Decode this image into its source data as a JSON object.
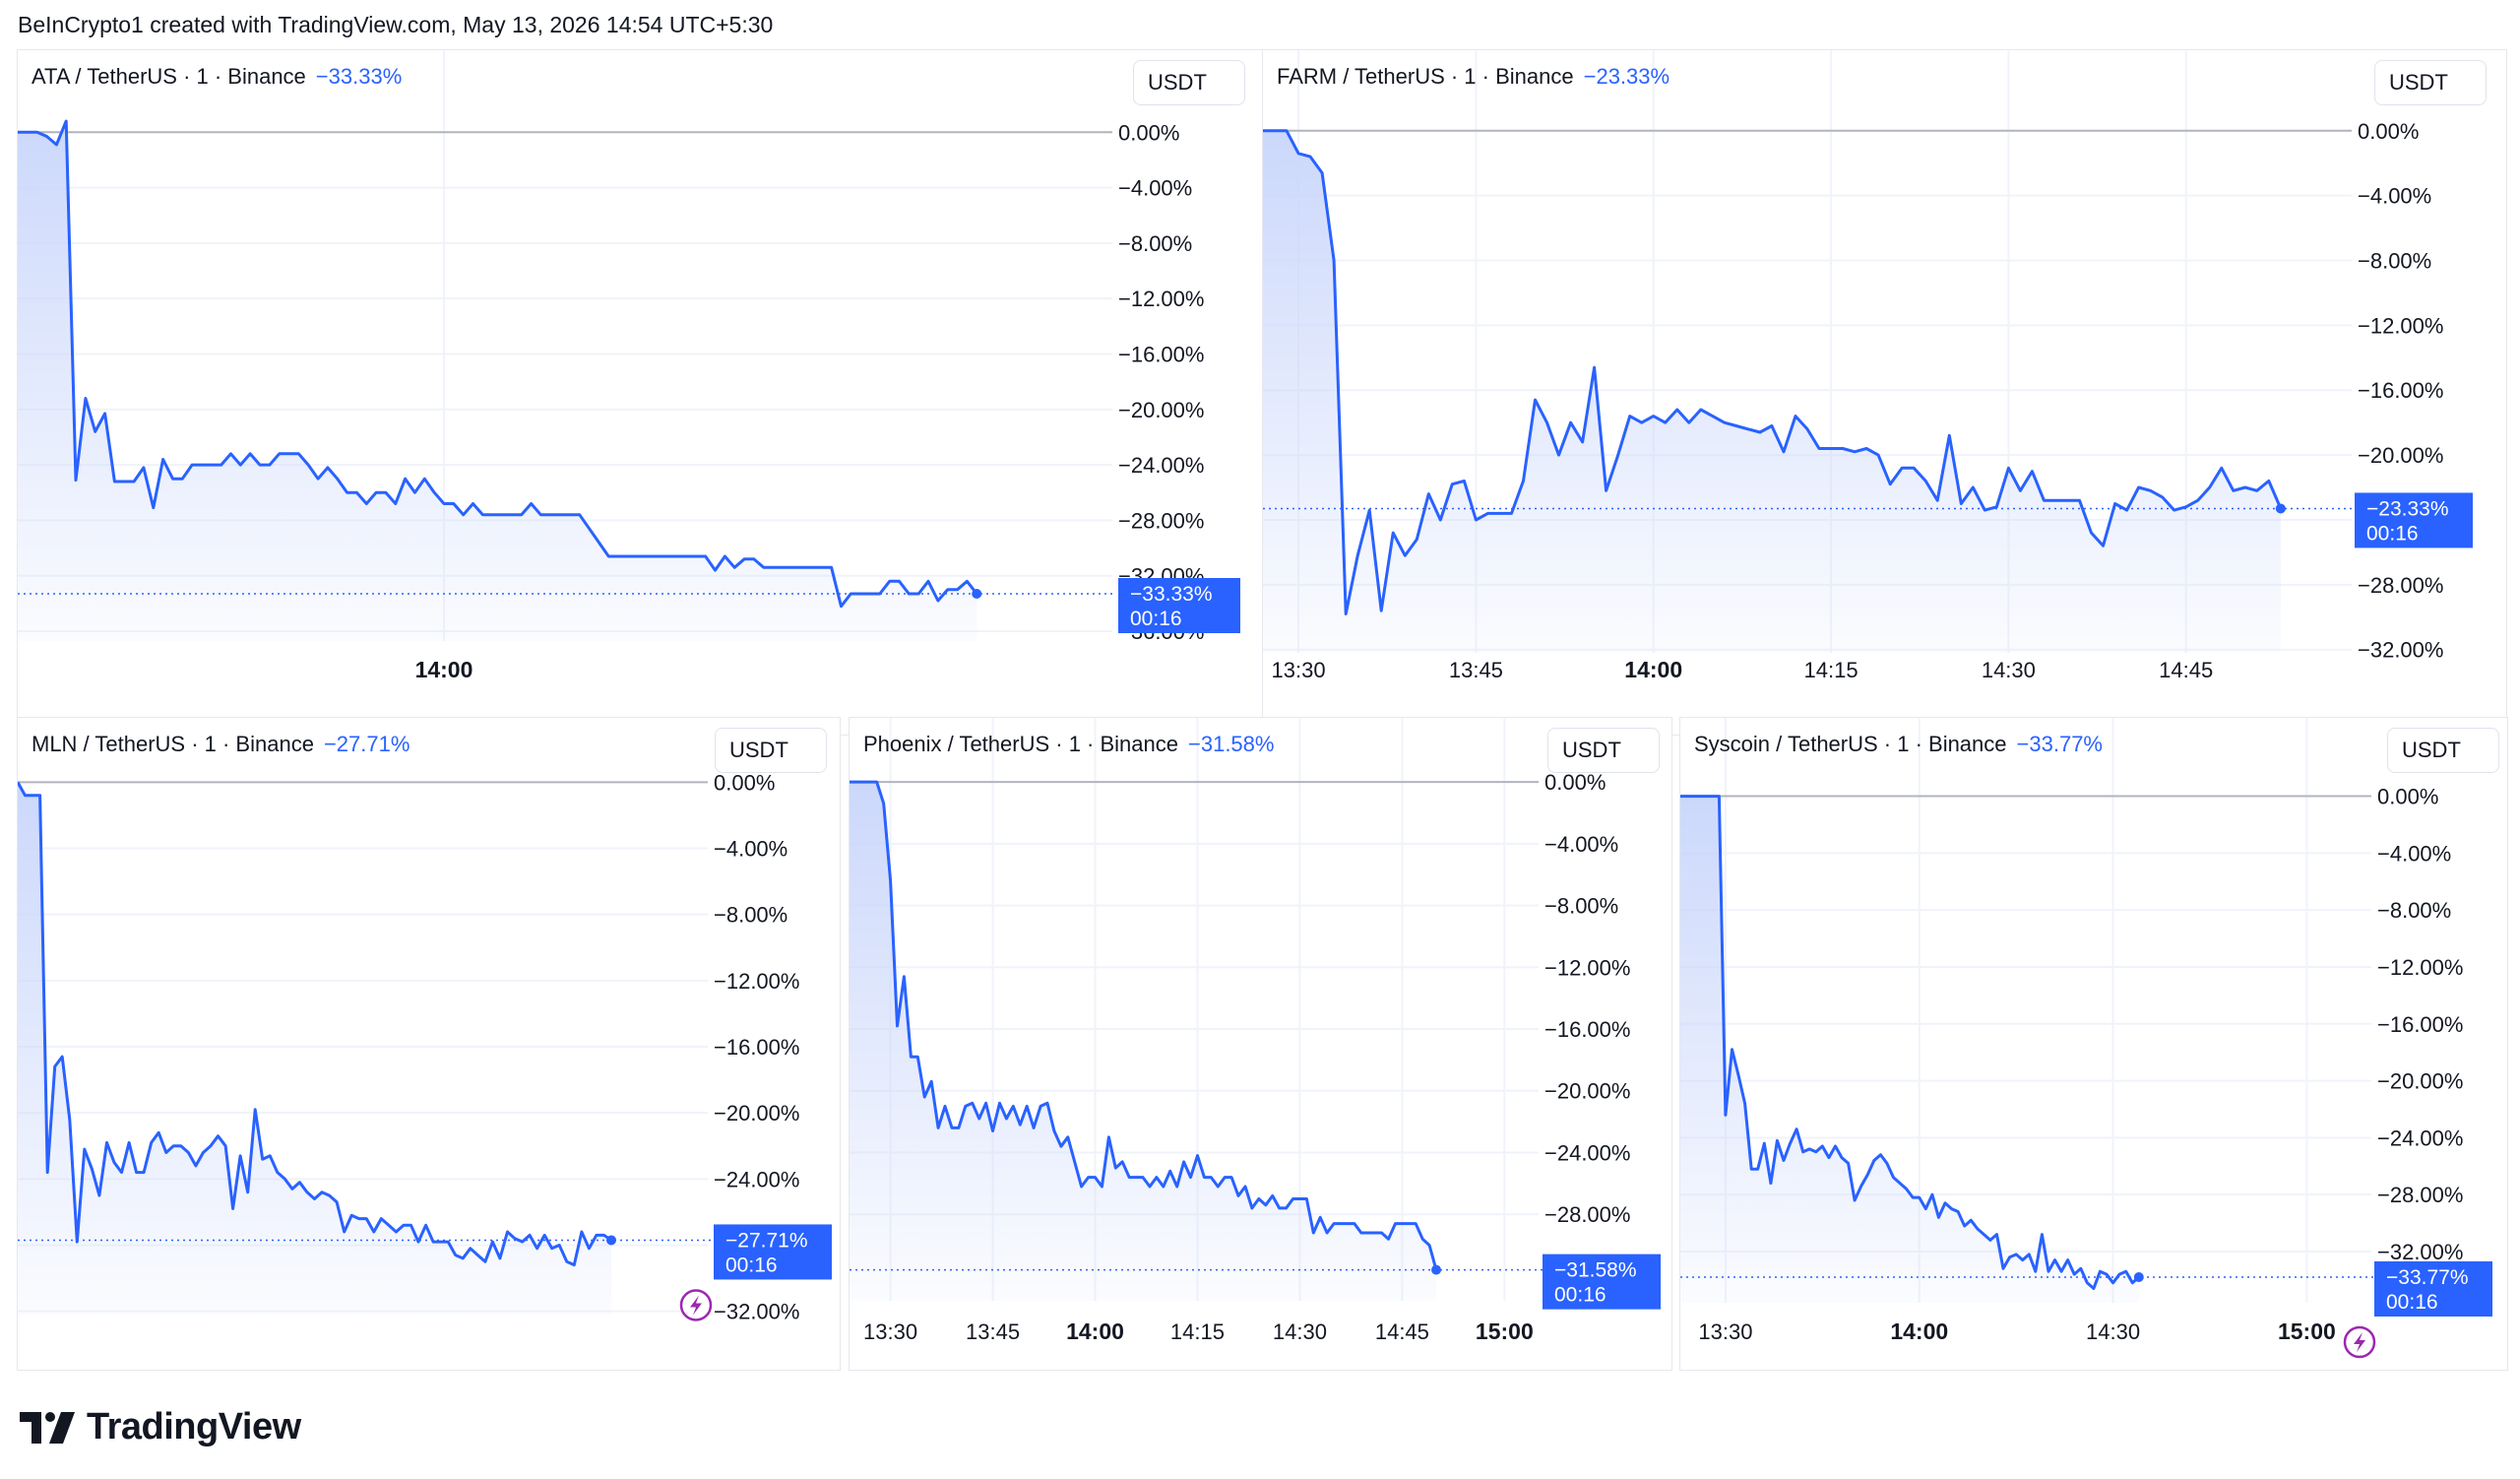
{
  "header": {
    "credit": "BeInCrypto1 created with TradingView.com, May 13, 2026 14:54 UTC+5:30"
  },
  "brand": {
    "name": "TradingView",
    "logo_icon": "tradingview-logo-icon"
  },
  "colors": {
    "line": "#2962ff",
    "fill_top": "#c9d6fb",
    "grid": "#f0f3fa",
    "label_bg": "#2962ff",
    "baseline": "#b2b5be",
    "bolt": "#9c27b0"
  },
  "chart_data": [
    {
      "type": "area",
      "title": "ATA / TetherUS · 1 · Binance",
      "change": "−33.33%",
      "currency": "USDT",
      "last_label": "−33.33%",
      "countdown": "00:16",
      "ylim": [
        -36,
        0.8
      ],
      "yticks": [
        "0.00%",
        "−4.00%",
        "−8.00%",
        "−12.00%",
        "−16.00%",
        "−20.00%",
        "−24.00%",
        "−28.00%",
        "−32.00%",
        "−36.00%"
      ],
      "ytick_values": [
        0,
        -4,
        -8,
        -12,
        -16,
        -20,
        -24,
        -28,
        -32,
        -36
      ],
      "xlim": [
        0,
        113
      ],
      "xticks": [
        {
          "label": "14:00",
          "x": 44,
          "bold": true
        }
      ],
      "bolt": false,
      "values": [
        0,
        0,
        0,
        -0.3,
        -0.9,
        0.8,
        -25.1,
        -19.2,
        -21.6,
        -20.3,
        -25.2,
        -25.2,
        -25.2,
        -24.2,
        -27.1,
        -23.6,
        -25.0,
        -25.0,
        -24.0,
        -24.0,
        -24.0,
        -24.0,
        -23.2,
        -24.0,
        -23.2,
        -24.0,
        -24.0,
        -23.2,
        -23.2,
        -23.2,
        -24.0,
        -25.0,
        -24.2,
        -25.0,
        -26.0,
        -26.0,
        -26.8,
        -26.0,
        -26.0,
        -26.8,
        -25.0,
        -26.0,
        -25.0,
        -26.0,
        -26.8,
        -26.8,
        -27.6,
        -26.8,
        -27.6,
        -27.6,
        -27.6,
        -27.6,
        -27.6,
        -26.8,
        -27.6,
        -27.6,
        -27.6,
        -27.6,
        -27.6,
        -28.6,
        -29.6,
        -30.6,
        -30.6,
        -30.6,
        -30.6,
        -30.6,
        -30.6,
        -30.6,
        -30.6,
        -30.6,
        -30.6,
        -30.6,
        -31.6,
        -30.6,
        -31.4,
        -30.8,
        -30.8,
        -31.4,
        -31.4,
        -31.4,
        -31.4,
        -31.4,
        -31.4,
        -31.4,
        -31.4,
        -34.2,
        -33.3,
        -33.3,
        -33.3,
        -33.3,
        -32.4,
        -32.4,
        -33.3,
        -33.3,
        -32.4,
        -33.8,
        -33.0,
        -33.0,
        -32.4,
        -33.3
      ]
    },
    {
      "type": "area",
      "title": "FARM / TetherUS · 1 · Binance",
      "change": "−23.33%",
      "currency": "USDT",
      "last_label": "−23.33%",
      "countdown": "00:16",
      "ylim": [
        -32.2,
        1.2
      ],
      "yticks": [
        "0.00%",
        "−4.00%",
        "−8.00%",
        "−12.00%",
        "−16.00%",
        "−20.00%",
        "−24.00%",
        "−28.00%",
        "−32.00%"
      ],
      "ytick_values": [
        0,
        -4,
        -8,
        -12,
        -16,
        -20,
        -24,
        -28,
        -32
      ],
      "xlim": [
        0,
        92
      ],
      "xticks": [
        {
          "label": "13:30",
          "x": 3,
          "bold": false
        },
        {
          "label": "13:45",
          "x": 18,
          "bold": false
        },
        {
          "label": "14:00",
          "x": 33,
          "bold": true
        },
        {
          "label": "14:15",
          "x": 48,
          "bold": false
        },
        {
          "label": "14:30",
          "x": 63,
          "bold": false
        },
        {
          "label": "14:45",
          "x": 78,
          "bold": false
        }
      ],
      "bolt": false,
      "values": [
        0,
        0,
        0,
        -1.4,
        -1.6,
        -2.6,
        -8.0,
        -29.8,
        -26.2,
        -23.4,
        -29.6,
        -24.8,
        -26.2,
        -25.2,
        -22.4,
        -24.0,
        -21.8,
        -21.6,
        -24.0,
        -23.6,
        -23.6,
        -23.6,
        -21.6,
        -16.6,
        -18.0,
        -20.0,
        -18.0,
        -19.2,
        -14.6,
        -22.2,
        -20.0,
        -17.6,
        -18.0,
        -17.6,
        -18.0,
        -17.2,
        -18.0,
        -17.2,
        -17.6,
        -18.0,
        -18.2,
        -18.4,
        -18.6,
        -18.2,
        -19.8,
        -17.6,
        -18.4,
        -19.6,
        -19.6,
        -19.6,
        -19.8,
        -19.6,
        -20.0,
        -21.8,
        -20.8,
        -20.8,
        -21.6,
        -22.8,
        -18.8,
        -23.0,
        -22.0,
        -23.4,
        -23.2,
        -20.8,
        -22.2,
        -21.0,
        -22.8,
        -22.8,
        -22.8,
        -22.8,
        -24.8,
        -25.6,
        -23.0,
        -23.4,
        -22.0,
        -22.2,
        -22.6,
        -23.4,
        -23.2,
        -22.8,
        -22.0,
        -20.8,
        -22.2,
        -22.0,
        -22.2,
        -21.6,
        -23.3
      ]
    },
    {
      "type": "area",
      "title": "MLN / TetherUS · 1 · Binance",
      "change": "−27.71%",
      "currency": "USDT",
      "last_label": "−27.71%",
      "countdown": "00:16",
      "ylim": [
        -32.2,
        0.2
      ],
      "yticks": [
        "0.00%",
        "−4.00%",
        "−8.00%",
        "−12.00%",
        "−16.00%",
        "−20.00%",
        "−24.00%",
        "−28.00%",
        "−32.00%"
      ],
      "ytick_values": [
        0,
        -4,
        -8,
        -12,
        -16,
        -20,
        -24,
        -28,
        -32
      ],
      "xlim": [
        0,
        93
      ],
      "xticks": [],
      "bolt": true,
      "values": [
        0,
        -0.8,
        -0.8,
        -0.8,
        -23.6,
        -17.2,
        -16.6,
        -20.4,
        -27.8,
        -22.2,
        -23.4,
        -25.0,
        -21.8,
        -23.0,
        -23.6,
        -21.8,
        -23.6,
        -23.6,
        -21.8,
        -21.2,
        -22.4,
        -22.0,
        -22.0,
        -22.4,
        -23.2,
        -22.4,
        -22.0,
        -21.4,
        -22.0,
        -25.8,
        -22.6,
        -24.8,
        -19.8,
        -22.8,
        -22.6,
        -23.6,
        -24.0,
        -24.6,
        -24.2,
        -24.8,
        -25.2,
        -24.8,
        -25.0,
        -25.4,
        -27.2,
        -26.2,
        -26.4,
        -26.4,
        -27.2,
        -26.4,
        -26.8,
        -27.2,
        -26.8,
        -26.8,
        -27.8,
        -26.8,
        -27.8,
        -27.8,
        -27.8,
        -28.6,
        -28.8,
        -28.2,
        -28.6,
        -29.0,
        -27.8,
        -28.8,
        -27.2,
        -27.6,
        -27.8,
        -27.4,
        -28.2,
        -27.4,
        -28.2,
        -28.0,
        -29.0,
        -29.2,
        -27.2,
        -28.2,
        -27.4,
        -27.4,
        -27.7
      ]
    },
    {
      "type": "area",
      "title": "Phoenix / TetherUS · 1 · Binance",
      "change": "−31.58%",
      "currency": "USDT",
      "last_label": "−31.58%",
      "countdown": "00:16",
      "ylim": [
        -33.6,
        0.2
      ],
      "yticks": [
        "0.00%",
        "−4.00%",
        "−8.00%",
        "−12.00%",
        "−16.00%",
        "−20.00%",
        "−24.00%",
        "−28.00%"
      ],
      "ytick_values": [
        0,
        -4,
        -8,
        -12,
        -16,
        -20,
        -24,
        -28
      ],
      "xlim": [
        0,
        101
      ],
      "xticks": [
        {
          "label": "13:30",
          "x": 6,
          "bold": false
        },
        {
          "label": "13:45",
          "x": 21,
          "bold": false
        },
        {
          "label": "14:00",
          "x": 36,
          "bold": true
        },
        {
          "label": "14:15",
          "x": 51,
          "bold": false
        },
        {
          "label": "14:30",
          "x": 66,
          "bold": false
        },
        {
          "label": "14:45",
          "x": 81,
          "bold": false
        },
        {
          "label": "15:00",
          "x": 96,
          "bold": true
        }
      ],
      "bolt": false,
      "values": [
        0,
        0,
        0,
        0,
        0,
        -1.4,
        -6.4,
        -15.8,
        -12.6,
        -17.8,
        -17.8,
        -20.4,
        -19.4,
        -22.4,
        -21.0,
        -22.4,
        -22.4,
        -21.0,
        -20.8,
        -21.8,
        -20.8,
        -22.6,
        -20.8,
        -21.8,
        -21.0,
        -22.2,
        -21.0,
        -22.4,
        -21.0,
        -20.8,
        -22.6,
        -23.6,
        -23.0,
        -24.6,
        -26.2,
        -25.6,
        -25.6,
        -26.2,
        -23.0,
        -25.0,
        -24.6,
        -25.6,
        -25.6,
        -25.6,
        -26.2,
        -25.6,
        -26.2,
        -25.2,
        -26.2,
        -24.6,
        -25.6,
        -24.2,
        -25.6,
        -25.6,
        -26.2,
        -25.6,
        -25.6,
        -26.8,
        -26.2,
        -27.6,
        -27.0,
        -27.4,
        -26.8,
        -27.6,
        -27.6,
        -27.0,
        -27.0,
        -27.0,
        -29.2,
        -28.2,
        -29.2,
        -28.6,
        -28.6,
        -28.6,
        -28.6,
        -29.2,
        -29.2,
        -29.2,
        -29.2,
        -29.6,
        -28.6,
        -28.6,
        -28.6,
        -28.6,
        -29.6,
        -30.0,
        -31.6
      ]
    },
    {
      "type": "area",
      "title": "Syscoin / TetherUS · 1 · Binance",
      "change": "−33.77%",
      "currency": "USDT",
      "last_label": "−33.77%",
      "countdown": "00:16",
      "ylim": [
        -35.6,
        0.8
      ],
      "yticks": [
        "0.00%",
        "−4.00%",
        "−8.00%",
        "−12.00%",
        "−16.00%",
        "−20.00%",
        "−24.00%",
        "−28.00%",
        "−32.00%"
      ],
      "ytick_values": [
        0,
        -4,
        -8,
        -12,
        -16,
        -20,
        -24,
        -28,
        -32
      ],
      "xlim": [
        0,
        107
      ],
      "xticks": [
        {
          "label": "13:30",
          "x": 7,
          "bold": false
        },
        {
          "label": "14:00",
          "x": 37,
          "bold": true
        },
        {
          "label": "14:30",
          "x": 67,
          "bold": false
        },
        {
          "label": "15:00",
          "x": 97,
          "bold": true
        }
      ],
      "bolt": true,
      "values": [
        0,
        0,
        0,
        0,
        0,
        0,
        0,
        -22.4,
        -17.8,
        -19.6,
        -21.6,
        -26.2,
        -26.2,
        -24.4,
        -27.2,
        -24.2,
        -25.6,
        -24.4,
        -23.4,
        -25.0,
        -24.8,
        -25.0,
        -24.6,
        -25.4,
        -24.6,
        -25.4,
        -25.8,
        -28.4,
        -27.4,
        -26.6,
        -25.6,
        -25.2,
        -25.8,
        -26.8,
        -27.2,
        -27.6,
        -28.2,
        -28.2,
        -29.0,
        -28.0,
        -29.6,
        -28.6,
        -29.0,
        -29.2,
        -30.2,
        -29.8,
        -30.4,
        -30.8,
        -31.2,
        -30.8,
        -33.2,
        -32.4,
        -32.2,
        -32.6,
        -32.2,
        -33.4,
        -30.8,
        -33.4,
        -32.6,
        -33.4,
        -32.6,
        -33.6,
        -33.2,
        -34.2,
        -34.6,
        -33.4,
        -33.6,
        -34.2,
        -33.6,
        -33.4,
        -34.2,
        -33.8
      ]
    }
  ]
}
